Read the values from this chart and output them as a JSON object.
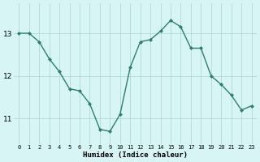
{
  "x": [
    0,
    1,
    2,
    3,
    4,
    5,
    6,
    7,
    8,
    9,
    10,
    11,
    12,
    13,
    14,
    15,
    16,
    17,
    18,
    19,
    20,
    21,
    22,
    23
  ],
  "y": [
    13.0,
    13.0,
    12.8,
    12.4,
    12.1,
    11.7,
    11.65,
    11.35,
    10.75,
    10.7,
    11.1,
    12.2,
    12.8,
    12.85,
    13.05,
    13.3,
    13.15,
    12.65,
    12.65,
    12.0,
    11.8,
    11.55,
    11.2,
    11.3
  ],
  "line_color": "#2e7d6e",
  "marker": "D",
  "marker_size": 2.0,
  "bg_color": "#d8f5f5",
  "grid_color": "#b0d8d8",
  "xlabel": "Humidex (Indice chaleur)",
  "yticks": [
    11,
    12,
    13
  ],
  "xticks": [
    0,
    1,
    2,
    3,
    4,
    5,
    6,
    7,
    8,
    9,
    10,
    11,
    12,
    13,
    14,
    15,
    16,
    17,
    18,
    19,
    20,
    21,
    22,
    23
  ],
  "ylim": [
    10.4,
    13.7
  ],
  "xlim": [
    -0.5,
    23.5
  ],
  "xlabel_fontsize": 6.5,
  "xtick_fontsize": 5.0,
  "ytick_fontsize": 6.5
}
